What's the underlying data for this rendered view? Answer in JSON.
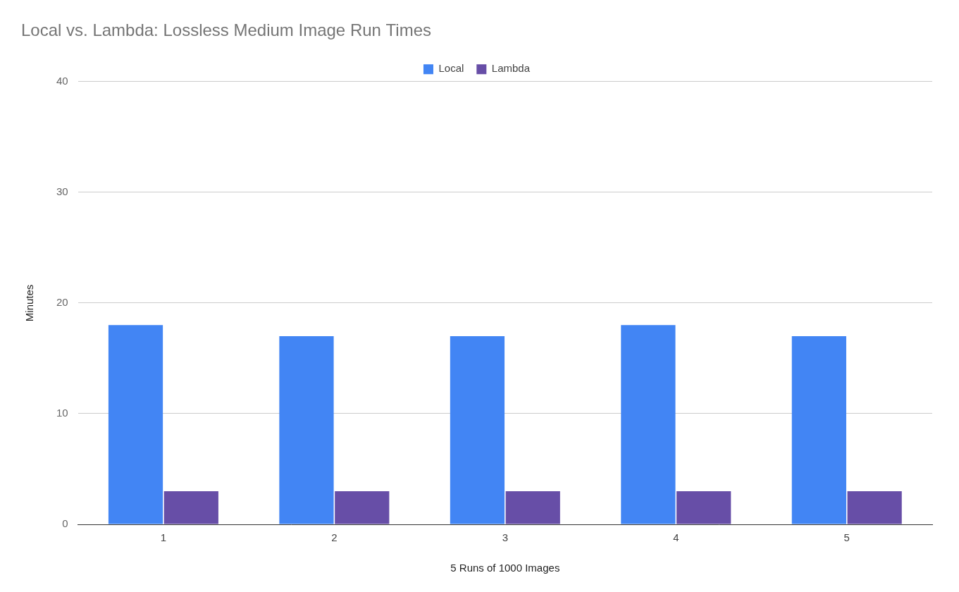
{
  "chart_data": {
    "type": "bar",
    "title": "Local vs. Lambda: Lossless Medium Image Run Times",
    "x_label": "5 Runs of 1000 Images",
    "y_label": "Minutes",
    "categories": [
      "1",
      "2",
      "3",
      "4",
      "5"
    ],
    "series": [
      {
        "name": "Local",
        "color": "#4285f4",
        "values": [
          18,
          17,
          17,
          18,
          17
        ]
      },
      {
        "name": "Lambda",
        "color": "#674ea7",
        "values": [
          3,
          3,
          3,
          3,
          3
        ]
      }
    ],
    "ylim": [
      0,
      40
    ],
    "yticks": [
      0,
      10,
      20,
      30,
      40
    ],
    "grid": true,
    "legend": "top"
  }
}
